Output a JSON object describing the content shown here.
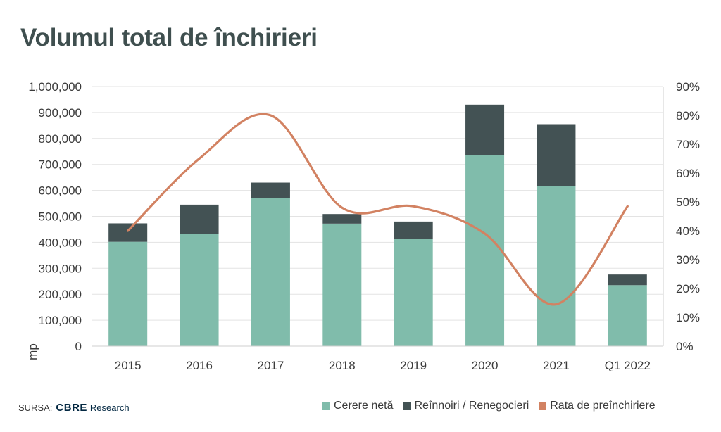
{
  "title": "Volumul total de închirieri",
  "source": {
    "label": "SURSA:",
    "brand": "CBRE",
    "brand_suffix": "Research"
  },
  "colors": {
    "net": "#80bcab",
    "renew": "#435254",
    "rate": "#d28262",
    "grid": "#e3e3e3",
    "axis": "#cfcfcf"
  },
  "chart_data": {
    "type": "bar",
    "stacked": true,
    "categories": [
      "2015",
      "2016",
      "2017",
      "2018",
      "2019",
      "2020",
      "2021",
      "Q1 2022"
    ],
    "series": [
      {
        "name": "Cerere netă",
        "type": "bar",
        "axis": "left",
        "values": [
          402000,
          432000,
          571000,
          472000,
          414000,
          735000,
          617000,
          235000
        ]
      },
      {
        "name": "Reînnoiri / Renegocieri",
        "type": "bar",
        "axis": "left",
        "values": [
          71000,
          113000,
          59000,
          37000,
          66000,
          195000,
          238000,
          41000
        ]
      },
      {
        "name": "Rata de preînchiriere",
        "type": "line",
        "axis": "right",
        "values": [
          40,
          65,
          80,
          48,
          48.5,
          39,
          14.5,
          48.5
        ]
      }
    ],
    "ylabel": "mp",
    "ylim": [
      0,
      1000000
    ],
    "yticks": [
      "0",
      "100,000",
      "200,000",
      "300,000",
      "400,000",
      "500,000",
      "600,000",
      "700,000",
      "800,000",
      "900,000",
      "1,000,000"
    ],
    "y2lim": [
      0,
      90
    ],
    "y2ticks": [
      "0%",
      "10%",
      "20%",
      "30%",
      "40%",
      "50%",
      "60%",
      "70%",
      "80%",
      "90%"
    ],
    "grid": true,
    "legend_position": "bottom-right"
  }
}
